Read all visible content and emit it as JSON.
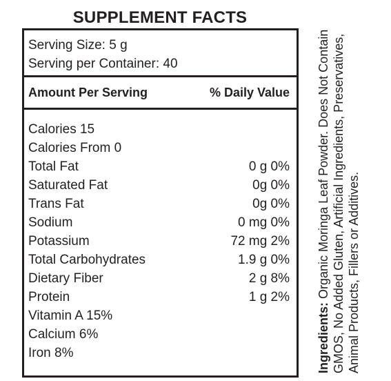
{
  "title": "SUPPLEMENT FACTS",
  "serving": {
    "size": "Serving Size: 5 g",
    "per_container": "Serving per Container: 40"
  },
  "header": {
    "amount": "Amount Per Serving",
    "daily_value": "% Daily Value"
  },
  "rows": [
    {
      "label": "Calories 15",
      "value": ""
    },
    {
      "label": "Calories From 0",
      "value": ""
    },
    {
      "label": "Total Fat",
      "value": "0 g 0%"
    },
    {
      "label": "Saturated Fat",
      "value": "0g 0%"
    },
    {
      "label": "Trans Fat",
      "value": "0g 0%"
    },
    {
      "label": "Sodium",
      "value": "0 mg 0%"
    },
    {
      "label": "Potassium",
      "value": "72 mg 2%"
    },
    {
      "label": "Total Carbohydrates",
      "value": "1.9 g 0%"
    },
    {
      "label": "Dietary Fiber",
      "value": "2 g 8%"
    },
    {
      "label": "Protein",
      "value": "1 g 2%"
    },
    {
      "label": "Vitamin A 15%",
      "value": ""
    },
    {
      "label": "Calcium 6%",
      "value": ""
    },
    {
      "label": "Iron 8%",
      "value": ""
    }
  ],
  "ingredients": {
    "label": "Ingredients:",
    "text": " Organic Moringa Leaf Powder. Does Not Contain GMOS, No Added Gluten, Artificial Ingredients, Preservatives, Animal Products, Fillers or Additives."
  }
}
